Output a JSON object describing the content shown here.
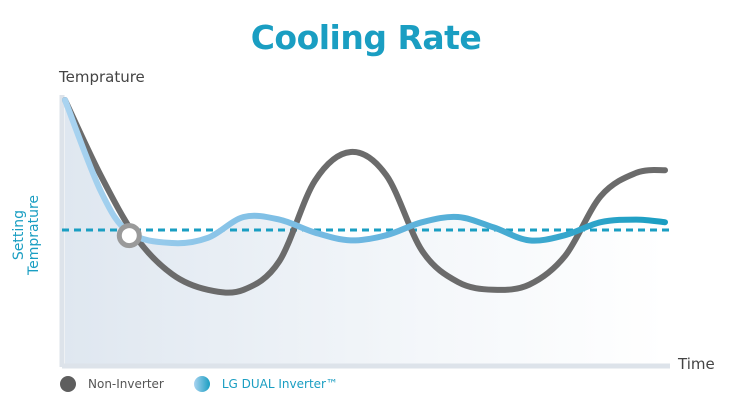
{
  "chart_data": {
    "type": "line",
    "title": "Cooling Rate",
    "ylabel": "Temprature",
    "xlabel": "Time",
    "setting_label": [
      "Setting",
      "Temprature"
    ],
    "series": [
      {
        "name": "Non-Inverter",
        "color": "#6b6b6b",
        "points": [
          [
            0,
            100
          ],
          [
            5,
            71
          ],
          [
            10,
            47
          ],
          [
            15,
            33
          ],
          [
            20,
            27
          ],
          [
            25,
            27
          ],
          [
            30,
            38
          ],
          [
            35,
            69
          ],
          [
            40,
            80
          ],
          [
            45,
            71
          ],
          [
            50,
            42
          ],
          [
            55,
            30
          ],
          [
            60,
            27
          ],
          [
            65,
            29
          ],
          [
            70,
            40
          ],
          [
            75,
            63
          ],
          [
            80,
            72
          ],
          [
            84,
            73
          ]
        ]
      },
      {
        "name": "LG DUAL Inverter™",
        "color": "#1a9ec2",
        "points": [
          [
            0,
            100
          ],
          [
            5,
            65
          ],
          [
            9,
            49
          ],
          [
            15,
            45
          ],
          [
            20,
            47
          ],
          [
            25,
            55
          ],
          [
            30,
            54
          ],
          [
            35,
            49
          ],
          [
            40,
            46
          ],
          [
            45,
            48
          ],
          [
            50,
            53
          ],
          [
            55,
            55
          ],
          [
            60,
            51
          ],
          [
            65,
            46
          ],
          [
            70,
            48
          ],
          [
            75,
            53
          ],
          [
            80,
            54
          ],
          [
            84,
            53
          ]
        ]
      }
    ],
    "setpoint": 50,
    "xlim": [
      0,
      84
    ],
    "ylim": [
      0,
      100
    ]
  },
  "legend": [
    {
      "label": "Non-Inverter"
    },
    {
      "label": "LG DUAL Inverter™"
    }
  ]
}
